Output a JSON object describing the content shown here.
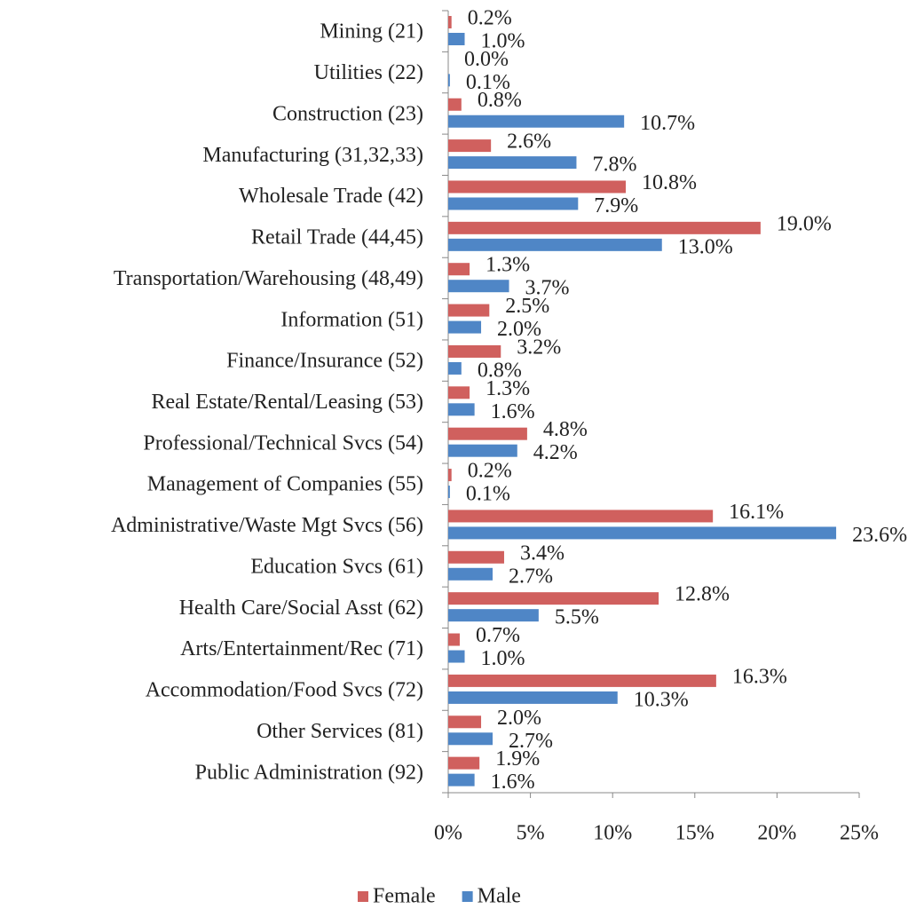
{
  "chart_data": {
    "type": "hbar",
    "categories": [
      "Mining (21)",
      "Utilities (22)",
      "Construction (23)",
      "Manufacturing (31,32,33)",
      "Wholesale Trade (42)",
      "Retail Trade (44,45)",
      "Transportation/Warehousing (48,49)",
      "Information (51)",
      "Finance/Insurance (52)",
      "Real Estate/Rental/Leasing (53)",
      "Professional/Technical Svcs (54)",
      "Management of Companies (55)",
      "Administrative/Waste Mgt Svcs (56)",
      "Education Svcs (61)",
      "Health Care/Social Asst (62)",
      "Arts/Entertainment/Rec (71)",
      "Accommodation/Food Svcs (72)",
      "Other Services (81)",
      "Public Administration (92)"
    ],
    "series": [
      {
        "name": "Female",
        "color": "#d0605e",
        "values": [
          0.2,
          0.0,
          0.8,
          2.6,
          10.8,
          19.0,
          1.3,
          2.5,
          3.2,
          1.3,
          4.8,
          0.2,
          16.1,
          3.4,
          12.8,
          0.7,
          16.3,
          2.0,
          1.9
        ],
        "value_labels": [
          "0.2%",
          "0.0%",
          "0.8%",
          "2.6%",
          "10.8%",
          "19.0%",
          "1.3%",
          "2.5%",
          "3.2%",
          "1.3%",
          "4.8%",
          "0.2%",
          "16.1%",
          "3.4%",
          "12.8%",
          "0.7%",
          "16.3%",
          "2.0%",
          "1.9%"
        ]
      },
      {
        "name": "Male",
        "color": "#4f86c6",
        "values": [
          1.0,
          0.1,
          10.7,
          7.8,
          7.9,
          13.0,
          3.7,
          2.0,
          0.8,
          1.6,
          4.2,
          0.1,
          23.6,
          2.7,
          5.5,
          1.0,
          10.3,
          2.7,
          1.6
        ],
        "value_labels": [
          "1.0%",
          "0.1%",
          "10.7%",
          "7.8%",
          "7.9%",
          "13.0%",
          "3.7%",
          "2.0%",
          "0.8%",
          "1.6%",
          "4.2%",
          "0.1%",
          "23.6%",
          "2.7%",
          "5.5%",
          "1.0%",
          "10.3%",
          "2.7%",
          "1.6%"
        ]
      }
    ],
    "xlim": [
      0,
      25
    ],
    "xticks": [
      {
        "value": 0,
        "label": "0%"
      },
      {
        "value": 5,
        "label": "5%"
      },
      {
        "value": 10,
        "label": "10%"
      },
      {
        "value": 15,
        "label": "15%"
      },
      {
        "value": 20,
        "label": "20%"
      },
      {
        "value": 25,
        "label": "25%"
      }
    ],
    "grid": false,
    "legend": "bottom"
  }
}
